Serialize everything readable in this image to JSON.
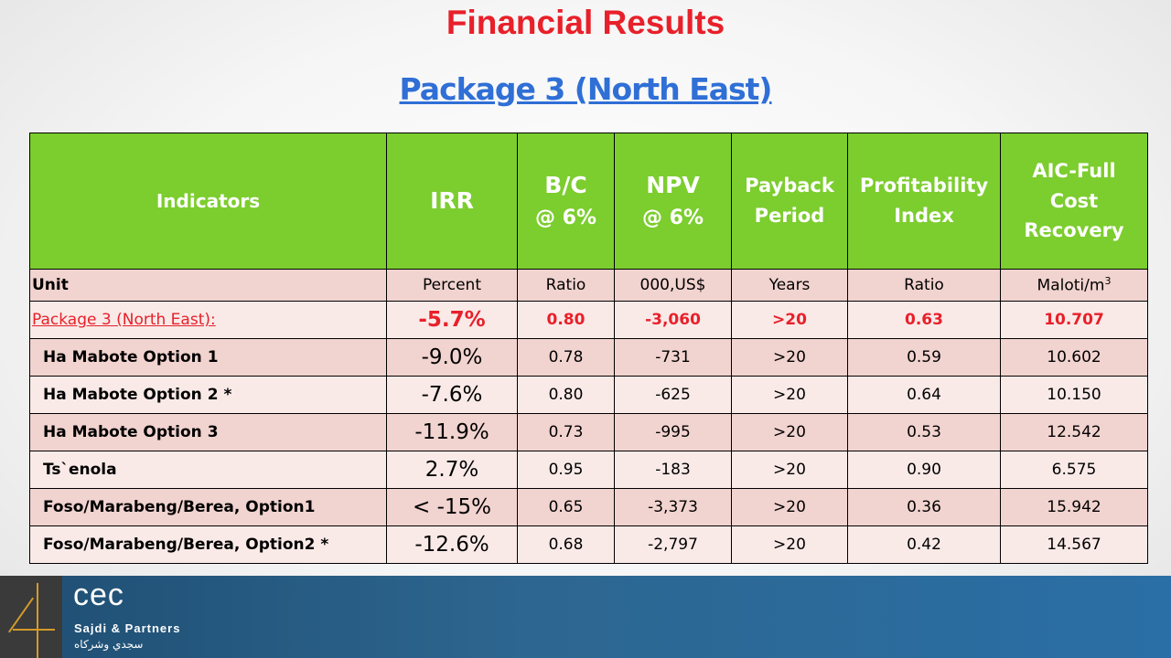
{
  "slide": {
    "title": "Financial Results",
    "subtitle": "Package 3  (North East)"
  },
  "table": {
    "headers": {
      "indicators": "Indicators",
      "irr": "IRR",
      "bc_line1": "B/C",
      "bc_line2": "@ 6%",
      "npv_line1": "NPV",
      "npv_line2": "@ 6%",
      "payback_line1": "Payback",
      "payback_line2": "Period",
      "pi_line1": "Profitability",
      "pi_line2": "Index",
      "aic_line1": "AIC-Full",
      "aic_line2": "Cost",
      "aic_line3": "Recovery"
    },
    "units": {
      "label": "Unit",
      "irr": "Percent",
      "bc": "Ratio",
      "npv": "000,US$",
      "payback": "Years",
      "pi": "Ratio",
      "aic": "Maloti/m",
      "aic_sup": "3"
    },
    "package": {
      "name": "Package 3  (North East):",
      "irr": "-5.7%",
      "bc": "0.80",
      "npv": "-3,060",
      "payback": ">20",
      "pi": "0.63",
      "aic": "10.707"
    },
    "rows": [
      {
        "name": "Ha Mabote Option 1",
        "irr": "-9.0%",
        "bc": "0.78",
        "npv": "-731",
        "payback": ">20",
        "pi": "0.59",
        "aic": "10.602"
      },
      {
        "name": "Ha Mabote Option 2 *",
        "irr": "-7.6%",
        "bc": "0.80",
        "npv": "-625",
        "payback": ">20",
        "pi": "0.64",
        "aic": "10.150"
      },
      {
        "name": "Ha Mabote Option 3",
        "irr": "-11.9%",
        "bc": "0.73",
        "npv": "-995",
        "payback": ">20",
        "pi": "0.53",
        "aic": "12.542"
      },
      {
        "name": "Ts`enola",
        "irr": "2.7%",
        "bc": "0.95",
        "npv": "-183",
        "payback": ">20",
        "pi": "0.90",
        "aic": "6.575"
      },
      {
        "name": "Foso/Marabeng/Berea, Option1",
        "irr": "< -15%",
        "bc": "0.65",
        "npv": "-3,373",
        "payback": ">20",
        "pi": "0.36",
        "aic": "15.942"
      },
      {
        "name": "Foso/Marabeng/Berea, Option2 *",
        "irr": "-12.6%",
        "bc": "0.68",
        "npv": "-2,797",
        "payback": ">20",
        "pi": "0.42",
        "aic": "14.567"
      }
    ]
  },
  "footer": {
    "brand": "cec",
    "partner": "Sajdi & Partners",
    "arabic": "سجدي وشركاه"
  }
}
